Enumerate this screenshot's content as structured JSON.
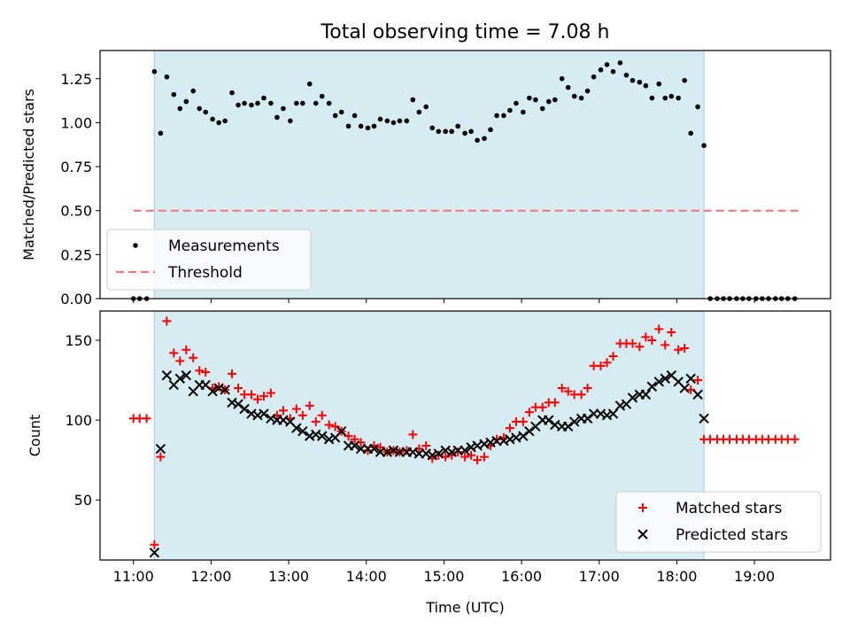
{
  "chart_data": [
    {
      "type": "scatter",
      "title": "Total observing time = 7.08 h",
      "xlabel": "",
      "ylabel": "Matched/Predicted stars",
      "xlim": [
        10.57,
        19.98
      ],
      "ylim": [
        0.0,
        1.41
      ],
      "xticks": [
        11,
        12,
        13,
        14,
        15,
        16,
        17,
        18,
        19
      ],
      "xtick_labels": [],
      "yticks": [
        0.0,
        0.25,
        0.5,
        0.75,
        1.0,
        1.25
      ],
      "ytick_labels": [
        "0.00",
        "0.25",
        "0.50",
        "0.75",
        "1.00",
        "1.25"
      ],
      "shaded_region": {
        "x": [
          11.27,
          18.35
        ],
        "color": "#add8e6",
        "alpha": 0.5
      },
      "legend": {
        "position": "lower-left",
        "entries": [
          "Measurements",
          "Threshold"
        ]
      },
      "series": [
        {
          "name": "Measurements",
          "marker": "dot",
          "color": "#000000",
          "x": [
            11.0,
            11.08,
            11.17,
            11.27,
            11.35,
            11.43,
            11.52,
            11.6,
            11.68,
            11.77,
            11.85,
            11.93,
            12.02,
            12.1,
            12.18,
            12.27,
            12.35,
            12.43,
            12.52,
            12.6,
            12.68,
            12.77,
            12.85,
            12.93,
            13.02,
            13.1,
            13.18,
            13.27,
            13.35,
            13.43,
            13.52,
            13.6,
            13.68,
            13.77,
            13.85,
            13.93,
            14.02,
            14.1,
            14.18,
            14.27,
            14.35,
            14.43,
            14.52,
            14.6,
            14.68,
            14.77,
            14.85,
            14.93,
            15.02,
            15.1,
            15.18,
            15.27,
            15.35,
            15.43,
            15.52,
            15.6,
            15.68,
            15.77,
            15.85,
            15.93,
            16.02,
            16.1,
            16.18,
            16.27,
            16.35,
            16.43,
            16.52,
            16.6,
            16.68,
            16.77,
            16.85,
            16.93,
            17.02,
            17.1,
            17.18,
            17.27,
            17.35,
            17.43,
            17.52,
            17.6,
            17.68,
            17.77,
            17.85,
            17.93,
            18.02,
            18.1,
            18.18,
            18.27,
            18.35,
            18.43,
            18.52,
            18.6,
            18.68,
            18.77,
            18.85,
            18.93,
            19.02,
            19.1,
            19.18,
            19.27,
            19.35,
            19.43,
            19.52
          ],
          "y": [
            0.0,
            0.0,
            0.0,
            1.29,
            0.94,
            1.26,
            1.16,
            1.08,
            1.12,
            1.18,
            1.08,
            1.06,
            1.02,
            1.0,
            1.01,
            1.17,
            1.1,
            1.11,
            1.1,
            1.11,
            1.14,
            1.11,
            1.03,
            1.08,
            1.01,
            1.11,
            1.11,
            1.22,
            1.11,
            1.15,
            1.11,
            1.04,
            1.06,
            0.98,
            1.04,
            0.98,
            0.97,
            0.98,
            1.02,
            1.01,
            1.0,
            1.01,
            1.01,
            1.13,
            1.06,
            1.09,
            0.97,
            0.95,
            0.95,
            0.95,
            0.98,
            0.94,
            0.95,
            0.9,
            0.91,
            0.96,
            1.04,
            1.04,
            1.07,
            1.11,
            1.06,
            1.14,
            1.13,
            1.08,
            1.12,
            1.13,
            1.25,
            1.2,
            1.15,
            1.14,
            1.18,
            1.26,
            1.3,
            1.33,
            1.29,
            1.34,
            1.27,
            1.24,
            1.23,
            1.21,
            1.14,
            1.22,
            1.14,
            1.15,
            1.14,
            1.24,
            0.94,
            1.09,
            0.87,
            0.0,
            0.0,
            0.0,
            0.0,
            0.0,
            0.0,
            0.0,
            0.0,
            0.0,
            0.0,
            0.0,
            0.0,
            0.0,
            0.0
          ]
        },
        {
          "name": "Threshold",
          "line": "dashed",
          "color": "#ff6f6f",
          "x": [
            11.0,
            19.6
          ],
          "y": [
            0.5,
            0.5
          ]
        }
      ]
    },
    {
      "type": "scatter",
      "title": "",
      "xlabel": "Time (UTC)",
      "ylabel": "Count",
      "xlim": [
        10.57,
        19.98
      ],
      "ylim": [
        12.4,
        168.3
      ],
      "xticks": [
        11,
        12,
        13,
        14,
        15,
        16,
        17,
        18,
        19
      ],
      "xtick_labels": [
        "11:00",
        "12:00",
        "13:00",
        "14:00",
        "15:00",
        "16:00",
        "17:00",
        "18:00",
        "19:00"
      ],
      "yticks": [
        50,
        100,
        150
      ],
      "ytick_labels": [
        "50",
        "100",
        "150"
      ],
      "shaded_region": {
        "x": [
          11.27,
          18.35
        ],
        "color": "#add8e6",
        "alpha": 0.5
      },
      "legend": {
        "position": "lower-right",
        "entries": [
          "Matched stars",
          "Predicted stars"
        ]
      },
      "series": [
        {
          "name": "Matched stars",
          "marker": "plus",
          "color": "#ff0000",
          "x": [
            11.0,
            11.08,
            11.17,
            11.27,
            11.35,
            11.43,
            11.52,
            11.6,
            11.68,
            11.77,
            11.85,
            11.93,
            12.02,
            12.1,
            12.18,
            12.27,
            12.35,
            12.43,
            12.52,
            12.6,
            12.68,
            12.77,
            12.85,
            12.93,
            13.02,
            13.1,
            13.18,
            13.27,
            13.35,
            13.43,
            13.52,
            13.6,
            13.68,
            13.77,
            13.85,
            13.93,
            14.02,
            14.1,
            14.18,
            14.27,
            14.35,
            14.43,
            14.52,
            14.6,
            14.68,
            14.77,
            14.85,
            14.93,
            15.02,
            15.1,
            15.18,
            15.27,
            15.35,
            15.43,
            15.52,
            15.6,
            15.68,
            15.77,
            15.85,
            15.93,
            16.02,
            16.1,
            16.18,
            16.27,
            16.35,
            16.43,
            16.52,
            16.6,
            16.68,
            16.77,
            16.85,
            16.93,
            17.02,
            17.1,
            17.18,
            17.27,
            17.35,
            17.43,
            17.52,
            17.6,
            17.68,
            17.77,
            17.85,
            17.93,
            18.02,
            18.1,
            18.18,
            18.27,
            18.35,
            18.43,
            18.52,
            18.6,
            18.68,
            18.77,
            18.85,
            18.93,
            19.02,
            19.1,
            19.18,
            19.27,
            19.35,
            19.43,
            19.52
          ],
          "y": [
            101,
            101,
            101,
            22,
            77,
            162,
            142,
            137,
            144,
            139,
            131,
            130,
            120,
            121,
            119,
            129,
            120,
            116,
            116,
            113,
            115,
            117,
            103,
            106,
            101,
            107,
            103,
            109,
            99,
            103,
            97,
            96,
            93,
            90,
            88,
            86,
            81,
            84,
            83,
            80,
            81,
            80,
            81,
            91,
            82,
            84,
            76,
            78,
            77,
            78,
            80,
            77,
            78,
            75,
            77,
            84,
            88,
            89,
            95,
            99,
            99,
            105,
            108,
            108,
            111,
            111,
            120,
            118,
            116,
            116,
            120,
            134,
            134,
            136,
            140,
            148,
            148,
            148,
            146,
            152,
            150,
            157,
            147,
            155,
            144,
            145,
            119,
            125,
            88,
            88,
            88,
            88,
            88,
            88,
            88,
            88,
            88,
            88,
            88,
            88,
            88,
            88,
            88
          ]
        },
        {
          "name": "Predicted stars",
          "marker": "x",
          "color": "#000000",
          "x": [
            11.27,
            11.35,
            11.43,
            11.52,
            11.6,
            11.68,
            11.77,
            11.85,
            11.93,
            12.02,
            12.1,
            12.18,
            12.27,
            12.35,
            12.43,
            12.52,
            12.6,
            12.68,
            12.77,
            12.85,
            12.93,
            13.02,
            13.1,
            13.18,
            13.27,
            13.35,
            13.43,
            13.52,
            13.6,
            13.68,
            13.77,
            13.85,
            13.93,
            14.02,
            14.1,
            14.18,
            14.27,
            14.35,
            14.43,
            14.52,
            14.6,
            14.68,
            14.77,
            14.85,
            14.93,
            15.02,
            15.1,
            15.18,
            15.27,
            15.35,
            15.43,
            15.52,
            15.6,
            15.68,
            15.77,
            15.85,
            15.93,
            16.02,
            16.1,
            16.18,
            16.27,
            16.35,
            16.43,
            16.52,
            16.6,
            16.68,
            16.77,
            16.85,
            16.93,
            17.02,
            17.1,
            17.18,
            17.27,
            17.35,
            17.43,
            17.52,
            17.6,
            17.68,
            17.77,
            17.85,
            17.93,
            18.02,
            18.1,
            18.18,
            18.27,
            18.35
          ],
          "y": [
            17,
            82,
            128,
            122,
            126,
            128,
            118,
            122,
            122,
            118,
            120,
            119,
            111,
            110,
            107,
            104,
            103,
            104,
            101,
            100,
            100,
            99,
            95,
            93,
            90,
            91,
            90,
            88,
            89,
            93,
            84,
            84,
            82,
            82,
            82,
            80,
            80,
            81,
            80,
            80,
            80,
            79,
            79,
            78,
            79,
            81,
            80,
            81,
            81,
            83,
            84,
            85,
            86,
            87,
            87,
            88,
            89,
            90,
            93,
            96,
            100,
            100,
            97,
            96,
            96,
            99,
            101,
            101,
            104,
            104,
            103,
            104,
            109,
            110,
            114,
            116,
            116,
            121,
            124,
            126,
            128,
            124,
            120,
            126,
            116,
            101
          ]
        }
      ]
    }
  ]
}
